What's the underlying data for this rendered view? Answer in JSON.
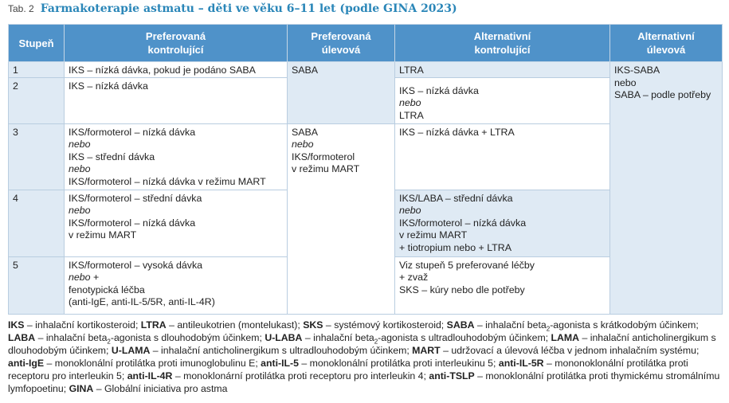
{
  "caption": {
    "label": "Tab. 2",
    "title": "Farmakoterapie astmatu – děti ve věku 6–11 let (podle GINA 2023)"
  },
  "table": {
    "header": [
      [
        "Stupeň"
      ],
      [
        "Preferovaná",
        "kontrolující"
      ],
      [
        "Preferovaná",
        "úlevová"
      ],
      [
        "Alternativní",
        "kontrolující"
      ],
      [
        "Alternativní",
        "úlevová"
      ]
    ],
    "rows": [
      {
        "step": "1",
        "controller": [
          "IKS – nízká dávka, pokud je podáno SABA"
        ],
        "reliever": [
          "SABA"
        ],
        "alt_controller": [
          "LTRA"
        ],
        "alt_reliever": [
          "IKS-SABA",
          "nebo",
          "SABA – podle potřeby"
        ]
      },
      {
        "step": "2",
        "controller": [
          "IKS – nízká dávka"
        ],
        "alt_controller": [
          "IKS – nízká dávka",
          {
            "text": "nebo",
            "italic": true
          },
          "LTRA"
        ]
      },
      {
        "step": "3",
        "controller": [
          "IKS/formoterol – nízká dávka",
          {
            "text": "nebo",
            "italic": true
          },
          "IKS – střední dávka",
          {
            "text": "nebo",
            "italic": true
          },
          "IKS/formoterol – nízká dávka v režimu MART"
        ],
        "reliever": [
          "SABA",
          {
            "text": "nebo",
            "italic": true
          },
          "IKS/formoterol",
          "v režimu MART"
        ],
        "alt_controller": [
          "IKS – nízká dávka + LTRA"
        ]
      },
      {
        "step": "4",
        "controller": [
          "IKS/formoterol – střední dávka",
          {
            "text": "nebo",
            "italic": true
          },
          "IKS/formoterol – nízká dávka",
          "v režimu MART"
        ],
        "alt_controller": [
          "IKS/LABA – střední dávka",
          {
            "text": "nebo",
            "italic": true
          },
          "IKS/formoterol – nízká dávka",
          "v režimu MART",
          "+ tiotropium nebo + LTRA"
        ]
      },
      {
        "step": "5",
        "controller": [
          "IKS/formoterol – vysoká dávka",
          [
            {
              "text": "nebo",
              "italic": true
            },
            " +"
          ],
          "fenotypická léčba",
          "(anti-IgE, anti-IL-5/5R, anti-IL-4R)"
        ],
        "alt_controller": [
          "Viz stupeň 5 preferované léčby",
          "+ zvaž",
          "SKS – kúry nebo dle potřeby"
        ]
      }
    ]
  },
  "footnote": [
    {
      "text": "IKS",
      "bold": true
    },
    " – inhalační kortikosteroid; ",
    {
      "text": "LTRA",
      "bold": true
    },
    " – antileukotrien (montelukast); ",
    {
      "text": "SKS",
      "bold": true
    },
    " – systémový kortikosteroid; ",
    {
      "text": "SABA",
      "bold": true
    },
    " – inhalační beta",
    {
      "text": "2",
      "sub": true
    },
    "-agonista s krátkodobým účinkem; ",
    {
      "text": "LABA",
      "bold": true
    },
    " – inhalační beta",
    {
      "text": "2",
      "sub": true
    },
    "-agonista s dlouhodobým účinkem; ",
    {
      "text": "U-LABA",
      "bold": true
    },
    " – inhalační beta",
    {
      "text": "2",
      "sub": true
    },
    "-agonista s ultradlouhodobým účinkem; ",
    {
      "text": "LAMA",
      "bold": true
    },
    " – inhalační anticholinergikum s dlouhodobým účinkem; ",
    {
      "text": "U-LAMA",
      "bold": true
    },
    " – inhalační anticholinergikum s ultradlouhodobým účinkem; ",
    {
      "text": "MART",
      "bold": true
    },
    " – udržovací a úlevová léčba v jednom inhalačním systému; ",
    {
      "text": "anti-IgE",
      "bold": true
    },
    " – monoklonální protilátka proti imunoglobulinu E; ",
    {
      "text": "anti-IL-5",
      "bold": true
    },
    " – monoklonální protilátka proti interleukinu 5; ",
    {
      "text": "anti-IL-5R",
      "bold": true
    },
    " – mononoklonální protilátka proti receptoru pro interleukin 5; ",
    {
      "text": "anti-IL-4R",
      "bold": true
    },
    " – monoklonární protilátka proti receptoru pro interleukin 4; ",
    {
      "text": "anti-TSLP",
      "bold": true
    },
    " – monoklonální protilátka proti thymickému stromálnímu lymfopoetinu; ",
    {
      "text": "GINA",
      "bold": true
    },
    " – Globální iniciativa pro astma"
  ]
}
